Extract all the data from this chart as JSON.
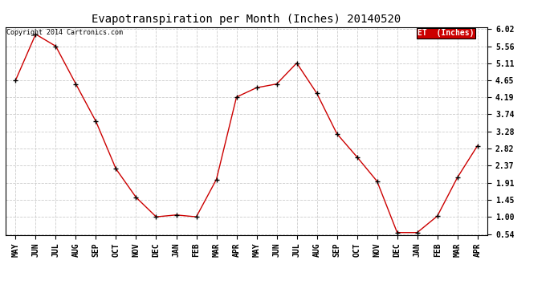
{
  "title": "Evapotranspiration per Month (Inches) 20140520",
  "copyright_text": "Copyright 2014 Cartronics.com",
  "legend_label": "ET  (Inches)",
  "legend_bg": "#cc0000",
  "legend_text_color": "#ffffff",
  "months": [
    "MAY",
    "JUN",
    "JUL",
    "AUG",
    "SEP",
    "OCT",
    "NOV",
    "DEC",
    "JAN",
    "FEB",
    "MAR",
    "APR",
    "MAY",
    "JUN",
    "JUL",
    "AUG",
    "SEP",
    "OCT",
    "NOV",
    "DEC",
    "JAN",
    "FEB",
    "MAR",
    "APR"
  ],
  "values": [
    4.65,
    5.88,
    5.56,
    4.55,
    3.55,
    2.28,
    1.52,
    1.0,
    1.05,
    1.0,
    2.0,
    4.2,
    4.45,
    4.55,
    5.11,
    4.3,
    3.22,
    2.6,
    1.95,
    0.58,
    0.58,
    1.02,
    2.05,
    2.9
  ],
  "line_color": "#cc0000",
  "marker_color": "#000000",
  "grid_color": "#cccccc",
  "yticks": [
    0.54,
    1.0,
    1.45,
    1.91,
    2.37,
    2.82,
    3.28,
    3.74,
    4.19,
    4.65,
    5.11,
    5.56,
    6.02
  ],
  "ymin": 0.54,
  "ymax": 6.02,
  "bg_color": "#ffffff",
  "title_fontsize": 10,
  "copyright_fontsize": 6,
  "tick_fontsize": 7,
  "legend_fontsize": 7
}
